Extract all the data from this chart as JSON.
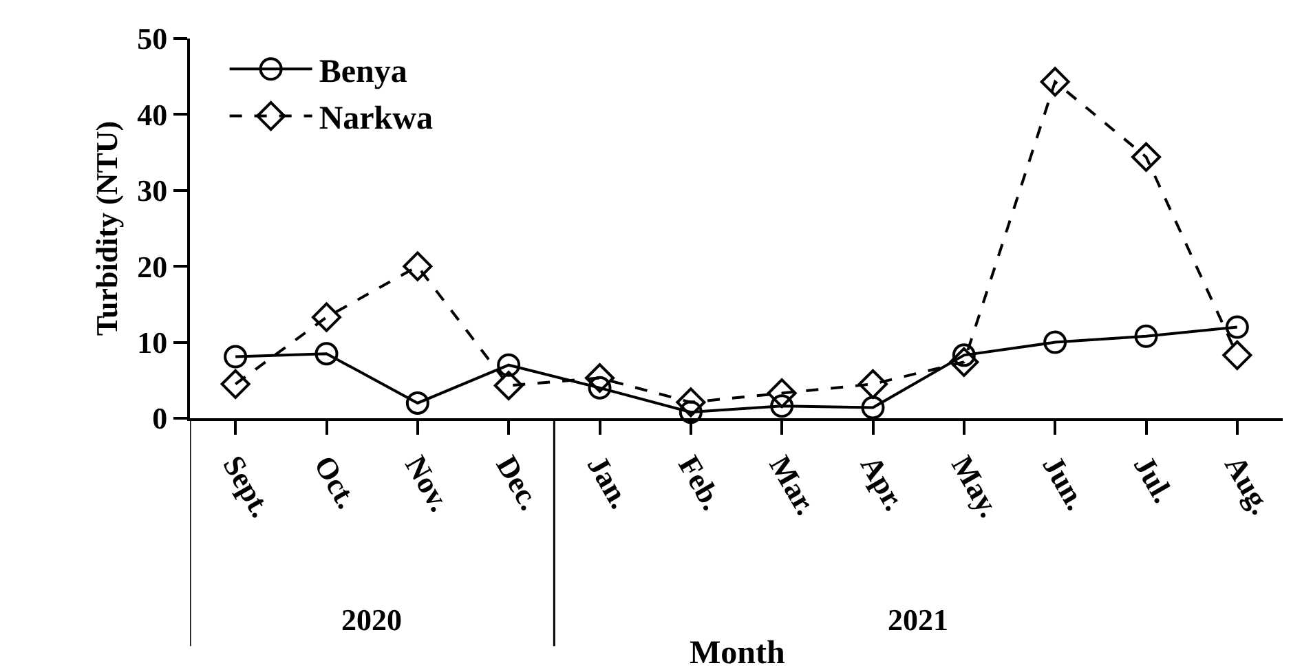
{
  "chart_data": {
    "type": "line",
    "xlabel": "Month",
    "ylabel": "Turbidity (NTU)",
    "categories": [
      "Sept.",
      "Oct.",
      "Nov.",
      "Dec.",
      "Jan.",
      "Feb.",
      "Mar.",
      "Apr.",
      "May.",
      "Jun.",
      "Jul.",
      "Aug."
    ],
    "series": [
      {
        "name": "Benya",
        "color": "#000000",
        "marker": "circle",
        "line_style": "solid",
        "values": [
          8.1,
          8.5,
          2.0,
          7.0,
          4.0,
          0.8,
          1.6,
          1.4,
          8.3,
          10.0,
          10.8,
          12.0
        ]
      },
      {
        "name": "Narkwa",
        "color": "#000000",
        "marker": "diamond",
        "line_style": "dashed",
        "values": [
          4.5,
          13.3,
          20.0,
          4.3,
          5.3,
          2.1,
          3.3,
          4.5,
          7.4,
          44.3,
          34.4,
          8.3
        ]
      }
    ],
    "ylim": [
      0,
      50
    ],
    "yticks": [
      0,
      10,
      20,
      30,
      40,
      50
    ],
    "grid": false,
    "legend": "top left",
    "annotations": [
      "2020",
      "2021"
    ]
  }
}
